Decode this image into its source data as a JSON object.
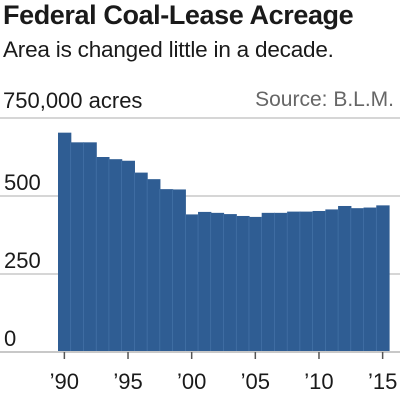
{
  "title": "Federal Coal-Lease Acreage",
  "subtitle": "Area is changed little in a decade.",
  "unit_label": "750,000 acres",
  "source": "Source: B.L.M.",
  "colors": {
    "bar": "#2f5d93",
    "grid": "#c8c8c8",
    "axis_text": "#1a1a1a"
  },
  "chart_data": {
    "type": "bar",
    "x": [
      1990,
      1991,
      1992,
      1993,
      1994,
      1995,
      1996,
      1997,
      1998,
      1999,
      2000,
      2001,
      2002,
      2003,
      2004,
      2005,
      2006,
      2007,
      2008,
      2009,
      2010,
      2011,
      2012,
      2013,
      2014,
      2015
    ],
    "values": [
      703,
      672,
      672,
      625,
      618,
      613,
      575,
      554,
      522,
      521,
      441,
      449,
      446,
      442,
      436,
      433,
      446,
      446,
      450,
      450,
      452,
      457,
      468,
      461,
      463,
      470
    ],
    "ylim": [
      0,
      750
    ],
    "y_ticks": [
      {
        "value": 500,
        "label": "500"
      },
      {
        "value": 250,
        "label": "250"
      },
      {
        "value": 0,
        "label": "0"
      }
    ],
    "x_ticks": [
      {
        "value": 1990,
        "label": "’90"
      },
      {
        "value": 1995,
        "label": "’95"
      },
      {
        "value": 2000,
        "label": "’00"
      },
      {
        "value": 2005,
        "label": "’05"
      },
      {
        "value": 2010,
        "label": "’10"
      },
      {
        "value": 2015,
        "label": "’15"
      }
    ],
    "grid": true
  }
}
